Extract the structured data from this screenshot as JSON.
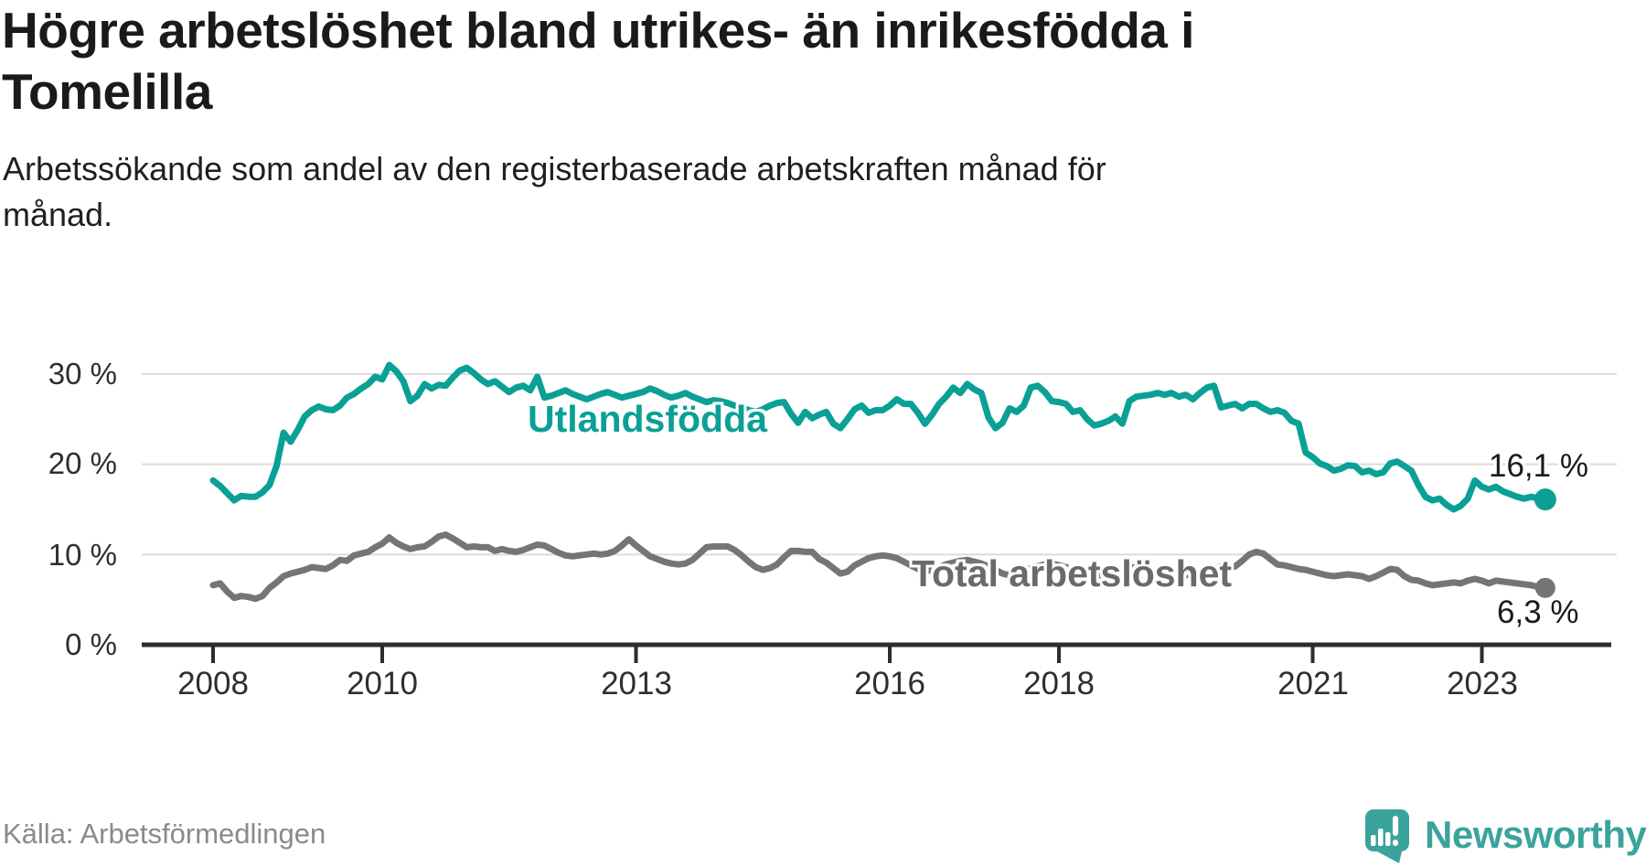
{
  "chart_data": {
    "type": "line",
    "title": "Högre arbetslöshet bland utrikes- än inrikesfödda i\nTomelilla",
    "subtitle": "Arbetssökande som andel av den registerbaserade arbetskraften månad för\nmånad.",
    "x_start": "2008-01",
    "x_end": "2023-10",
    "x_interval": "month",
    "ylim": [
      0,
      32
    ],
    "grid": "horizontal-light",
    "legend_position": "inline-labels",
    "colors": {
      "axis": "#2d2d2d",
      "gridline": "#dcdcdc",
      "tick_text": "#2e2e2e"
    },
    "y_ticks": [
      {
        "value": 0,
        "label": "0 %"
      },
      {
        "value": 10,
        "label": "10 %"
      },
      {
        "value": 20,
        "label": "20 %"
      },
      {
        "value": 30,
        "label": "30 %"
      }
    ],
    "x_ticks": [
      {
        "year": 2008,
        "label": "2008"
      },
      {
        "year": 2010,
        "label": "2010"
      },
      {
        "year": 2013,
        "label": "2013"
      },
      {
        "year": 2016,
        "label": "2016"
      },
      {
        "year": 2018,
        "label": "2018"
      },
      {
        "year": 2021,
        "label": "2021"
      },
      {
        "year": 2023,
        "label": "2023"
      }
    ],
    "series": [
      {
        "name": "Utlandsfödda",
        "color": "#0aa096",
        "end_label": "16,1 %",
        "end_value": 16.1,
        "values": [
          18.2,
          17.6,
          16.8,
          16.0,
          16.5,
          16.4,
          16.4,
          16.9,
          17.7,
          19.8,
          23.5,
          22.5,
          23.8,
          25.3,
          26.0,
          26.4,
          26.1,
          26.0,
          26.5,
          27.4,
          27.8,
          28.4,
          28.9,
          29.7,
          29.4,
          31.0,
          30.3,
          29.2,
          27.0,
          27.6,
          28.9,
          28.4,
          28.8,
          28.7,
          29.6,
          30.4,
          30.7,
          30.1,
          29.4,
          28.9,
          29.2,
          28.6,
          28.0,
          28.5,
          28.7,
          28.2,
          29.7,
          27.4,
          27.6,
          27.9,
          28.2,
          27.8,
          27.5,
          27.2,
          27.5,
          27.8,
          28.0,
          27.7,
          27.4,
          27.6,
          27.8,
          28.0,
          28.4,
          28.1,
          27.7,
          27.4,
          27.6,
          27.9,
          27.5,
          27.2,
          26.9,
          27.1,
          27.0,
          26.8,
          26.5,
          26.3,
          26.0,
          25.8,
          26.1,
          26.5,
          26.8,
          26.9,
          25.6,
          24.6,
          25.8,
          25.1,
          25.5,
          25.8,
          24.5,
          24.0,
          25.0,
          26.1,
          26.5,
          25.7,
          26.0,
          26.0,
          26.5,
          27.2,
          26.7,
          26.7,
          25.7,
          24.5,
          25.5,
          26.7,
          27.5,
          28.5,
          27.9,
          28.9,
          28.3,
          27.9,
          25.2,
          24.0,
          24.6,
          26.2,
          25.8,
          26.5,
          28.5,
          28.7,
          28.0,
          27.0,
          26.9,
          26.7,
          25.8,
          26.0,
          25.0,
          24.3,
          24.5,
          24.8,
          25.3,
          24.5,
          27.0,
          27.5,
          27.6,
          27.7,
          27.9,
          27.7,
          27.9,
          27.5,
          27.7,
          27.2,
          27.9,
          28.5,
          28.7,
          26.3,
          26.5,
          26.7,
          26.2,
          26.7,
          26.7,
          26.2,
          25.8,
          26.0,
          25.7,
          24.8,
          24.5,
          21.3,
          20.8,
          20.1,
          19.8,
          19.3,
          19.5,
          19.9,
          19.8,
          19.1,
          19.3,
          18.9,
          19.1,
          20.1,
          20.3,
          19.8,
          19.3,
          17.7,
          16.4,
          16.0,
          16.2,
          15.5,
          15.0,
          15.4,
          16.2,
          18.2,
          17.5,
          17.2,
          17.5,
          17.0,
          16.7,
          16.4,
          16.2,
          16.4,
          16.2,
          16.1
        ]
      },
      {
        "name": "Total arbetslöshet",
        "color": "#757578",
        "label_color": "#6a6a6e",
        "end_label": "6,3 %",
        "end_value": 6.3,
        "values": [
          6.6,
          6.8,
          5.9,
          5.2,
          5.4,
          5.3,
          5.1,
          5.4,
          6.3,
          6.9,
          7.6,
          7.9,
          8.1,
          8.3,
          8.6,
          8.5,
          8.4,
          8.8,
          9.4,
          9.3,
          9.9,
          10.1,
          10.3,
          10.8,
          11.2,
          11.9,
          11.3,
          10.9,
          10.6,
          10.8,
          10.9,
          11.4,
          12.0,
          12.2,
          11.8,
          11.3,
          10.8,
          10.9,
          10.8,
          10.8,
          10.4,
          10.6,
          10.4,
          10.3,
          10.5,
          10.8,
          11.1,
          11.0,
          10.6,
          10.2,
          9.9,
          9.8,
          9.9,
          10.0,
          10.1,
          10.0,
          10.1,
          10.4,
          11.0,
          11.7,
          11.0,
          10.4,
          9.8,
          9.5,
          9.2,
          9.0,
          8.9,
          9.0,
          9.4,
          10.1,
          10.8,
          10.9,
          10.9,
          10.9,
          10.5,
          9.9,
          9.2,
          8.6,
          8.3,
          8.5,
          8.9,
          9.7,
          10.4,
          10.4,
          10.3,
          10.3,
          9.5,
          9.1,
          8.5,
          7.9,
          8.1,
          8.8,
          9.2,
          9.6,
          9.8,
          9.9,
          9.8,
          9.6,
          9.2,
          8.8,
          8.4,
          8.1,
          8.3,
          8.6,
          8.9,
          9.1,
          9.3,
          9.4,
          9.2,
          9.0,
          8.7,
          8.3,
          7.9,
          7.7,
          7.9,
          8.2,
          8.5,
          8.7,
          8.9,
          9.0,
          8.8,
          8.6,
          8.3,
          7.9,
          7.6,
          7.4,
          7.6,
          7.9,
          8.1,
          8.3,
          8.5,
          8.6,
          8.4,
          8.2,
          8.0,
          7.8,
          7.6,
          7.5,
          7.7,
          7.9,
          8.1,
          8.3,
          8.5,
          8.7,
          8.4,
          8.7,
          9.3,
          10.0,
          10.3,
          10.1,
          9.5,
          8.9,
          8.8,
          8.6,
          8.4,
          8.3,
          8.1,
          7.9,
          7.7,
          7.6,
          7.7,
          7.8,
          7.7,
          7.6,
          7.3,
          7.6,
          8.0,
          8.4,
          8.3,
          7.6,
          7.2,
          7.1,
          6.8,
          6.6,
          6.7,
          6.8,
          6.9,
          6.8,
          7.1,
          7.3,
          7.1,
          6.8,
          7.1,
          7.0,
          6.9,
          6.8,
          6.7,
          6.6,
          6.4,
          6.3
        ]
      }
    ]
  },
  "footer": {
    "source": "Källa: Arbetsförmedlingen",
    "brand": "Newsworthy",
    "brand_color": "#3aa49c"
  }
}
